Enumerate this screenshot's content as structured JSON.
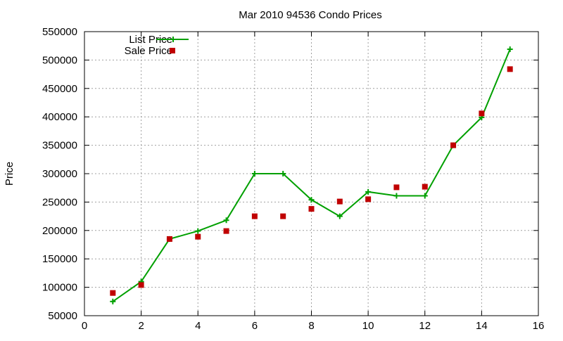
{
  "chart_data": {
    "type": "line",
    "title": "Mar 2010 94536 Condo Prices",
    "xlabel": "",
    "ylabel": "Price",
    "xlim": [
      0,
      16
    ],
    "ylim": [
      50000,
      550000
    ],
    "x_ticks": [
      0,
      2,
      4,
      6,
      8,
      10,
      12,
      14,
      16
    ],
    "y_ticks": [
      50000,
      100000,
      150000,
      200000,
      250000,
      300000,
      350000,
      400000,
      450000,
      500000,
      550000
    ],
    "grid": true,
    "legend_position": "top-left",
    "series": [
      {
        "name": "List Price",
        "style": "lines+points",
        "marker": "plus",
        "color": "#00a000",
        "points": [
          {
            "x": 1,
            "y": 75000
          },
          {
            "x": 2,
            "y": 110000
          },
          {
            "x": 3,
            "y": 185000
          },
          {
            "x": 4,
            "y": 199000
          },
          {
            "x": 5,
            "y": 218000
          },
          {
            "x": 6,
            "y": 300000
          },
          {
            "x": 7,
            "y": 300000
          },
          {
            "x": 8,
            "y": 254000
          },
          {
            "x": 9,
            "y": 225000
          },
          {
            "x": 10,
            "y": 268000
          },
          {
            "x": 11,
            "y": 261000
          },
          {
            "x": 12,
            "y": 261000
          },
          {
            "x": 13,
            "y": 350000
          },
          {
            "x": 14,
            "y": 399000
          },
          {
            "x": 15,
            "y": 519000
          }
        ]
      },
      {
        "name": "Sale Price",
        "style": "points",
        "marker": "square",
        "color": "#c00000",
        "points": [
          {
            "x": 1,
            "y": 90000
          },
          {
            "x": 2,
            "y": 104000
          },
          {
            "x": 3,
            "y": 185000
          },
          {
            "x": 4,
            "y": 189000
          },
          {
            "x": 5,
            "y": 199000
          },
          {
            "x": 6,
            "y": 225000
          },
          {
            "x": 7,
            "y": 225000
          },
          {
            "x": 8,
            "y": 238000
          },
          {
            "x": 9,
            "y": 251000
          },
          {
            "x": 10,
            "y": 255000
          },
          {
            "x": 11,
            "y": 276000
          },
          {
            "x": 12,
            "y": 277000
          },
          {
            "x": 13,
            "y": 350000
          },
          {
            "x": 14,
            "y": 406000
          },
          {
            "x": 15,
            "y": 484000
          }
        ]
      }
    ]
  }
}
